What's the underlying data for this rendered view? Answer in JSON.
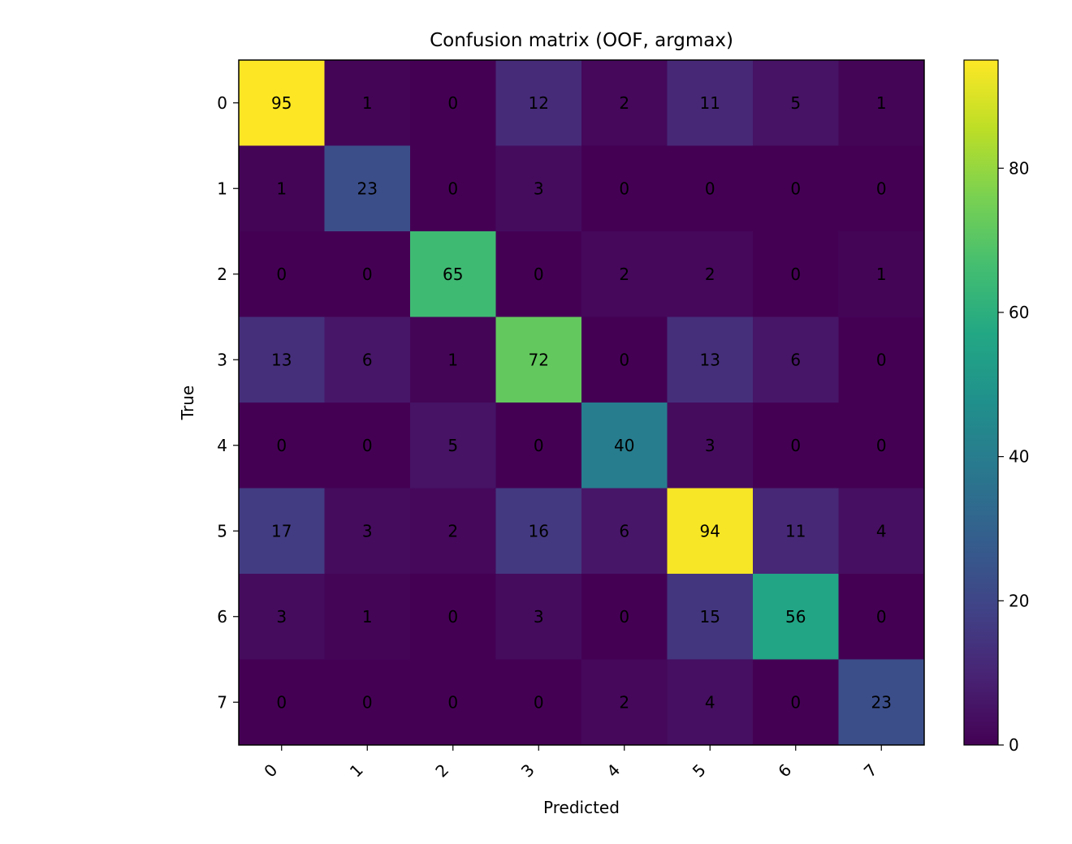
{
  "chart_data": {
    "type": "heatmap",
    "title": "Confusion matrix (OOF, argmax)",
    "xlabel": "Predicted",
    "ylabel": "True",
    "x_categories": [
      "0",
      "1",
      "2",
      "3",
      "4",
      "5",
      "6",
      "7"
    ],
    "y_categories": [
      "0",
      "1",
      "2",
      "3",
      "4",
      "5",
      "6",
      "7"
    ],
    "matrix": [
      [
        95,
        1,
        0,
        12,
        2,
        11,
        5,
        1
      ],
      [
        1,
        23,
        0,
        3,
        0,
        0,
        0,
        0
      ],
      [
        0,
        0,
        65,
        0,
        2,
        2,
        0,
        1
      ],
      [
        13,
        6,
        1,
        72,
        0,
        13,
        6,
        0
      ],
      [
        0,
        0,
        5,
        0,
        40,
        3,
        0,
        0
      ],
      [
        17,
        3,
        2,
        16,
        6,
        94,
        11,
        4
      ],
      [
        3,
        1,
        0,
        3,
        0,
        15,
        56,
        0
      ],
      [
        0,
        0,
        0,
        0,
        2,
        4,
        0,
        23
      ]
    ],
    "colormap": "viridis",
    "vmin": 0,
    "vmax": 95,
    "colorbar_ticks": [
      0,
      20,
      40,
      60,
      80
    ]
  }
}
